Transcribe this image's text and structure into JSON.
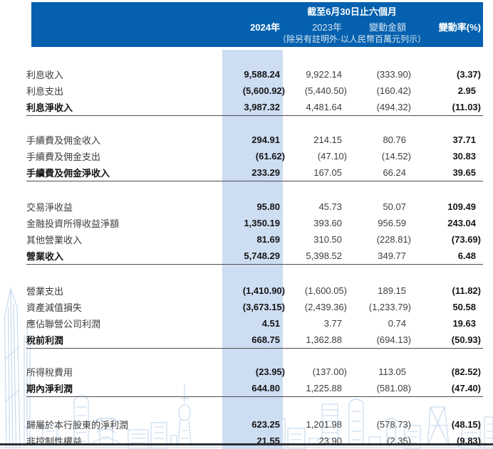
{
  "document": {
    "type": "financial-income-statement-table",
    "period_title": "截至6月30日止六個月",
    "unit_note": "（除另有註明外·以人民幣百萬元列示）",
    "columns": [
      "2024年",
      "2023年",
      "變動金額",
      "變動率(%)"
    ]
  },
  "colors": {
    "header_band_blue": "#0561af",
    "column_highlight_blue": "#cdddf2",
    "watermark_blue": "#bcd3ec",
    "rule_gray": "#4e4e4e",
    "bottom_line_dark": "#2c2e33"
  },
  "sections": [
    {
      "rule": true,
      "rows": [
        {
          "label": "利息收入",
          "total": false,
          "values": [
            "9,588.24",
            "9,922.14",
            "(333.90)",
            "(3.37)"
          ]
        },
        {
          "label": "利息支出",
          "total": false,
          "values": [
            "(5,600.92)",
            "(5,440.50)",
            "(160.42)",
            "2.95"
          ]
        },
        {
          "label": "利息淨收入",
          "total": true,
          "values": [
            "3,987.32",
            "4,481.64",
            "(494.32)",
            "(11.03)"
          ]
        }
      ]
    },
    {
      "rule": true,
      "rows": [
        {
          "label": "手續費及佣金收入",
          "total": false,
          "values": [
            "294.91",
            "214.15",
            "80.76",
            "37.71"
          ]
        },
        {
          "label": "手續費及佣金支出",
          "total": false,
          "values": [
            "(61.62)",
            "(47.10)",
            "(14.52)",
            "30.83"
          ]
        },
        {
          "label": "手續費及佣金淨收入",
          "total": true,
          "values": [
            "233.29",
            "167.05",
            "66.24",
            "39.65"
          ]
        }
      ]
    },
    {
      "rule": true,
      "rows": [
        {
          "label": "交易淨收益",
          "total": false,
          "values": [
            "95.80",
            "45.73",
            "50.07",
            "109.49"
          ]
        },
        {
          "label": "金融投資所得收益淨額",
          "total": false,
          "values": [
            "1,350.19",
            "393.60",
            "956.59",
            "243.04"
          ]
        },
        {
          "label": "其他營業收入",
          "total": false,
          "values": [
            "81.69",
            "310.50",
            "(228.81)",
            "(73.69)"
          ]
        },
        {
          "label": "營業收入",
          "total": true,
          "values": [
            "5,748.29",
            "5,398.52",
            "349.77",
            "6.48"
          ]
        }
      ]
    },
    {
      "rule": true,
      "rows": [
        {
          "label": "營業支出",
          "total": false,
          "values": [
            "(1,410.90)",
            "(1,600.05)",
            "189.15",
            "(11.82)"
          ]
        },
        {
          "label": "資產減值損失",
          "total": false,
          "values": [
            "(3,673.15)",
            "(2,439.36)",
            "(1,233.79)",
            "50.58"
          ]
        },
        {
          "label": "應佔聯營公司利潤",
          "total": false,
          "values": [
            "4.51",
            "3.77",
            "0.74",
            "19.63"
          ]
        },
        {
          "label": "稅前利潤",
          "total": true,
          "values": [
            "668.75",
            "1,362.88",
            "(694.13)",
            "(50.93)"
          ]
        }
      ]
    },
    {
      "rule": true,
      "rows": [
        {
          "label": "所得稅費用",
          "total": false,
          "values": [
            "(23.95)",
            "(137.00)",
            "113.05",
            "(82.52)"
          ]
        },
        {
          "label": "期內淨利潤",
          "total": true,
          "values": [
            "644.80",
            "1,225.88",
            "(581.08)",
            "(47.40)"
          ]
        }
      ]
    },
    {
      "rule": false,
      "rows": [
        {
          "label": "歸屬於本行股東的淨利潤",
          "total": false,
          "values": [
            "623.25",
            "1,201.98",
            "(578.73)",
            "(48.15)"
          ]
        },
        {
          "label": "非控制性權益",
          "total": false,
          "values": [
            "21.55",
            "23.90",
            "(2.35)",
            "(9.83)"
          ]
        }
      ]
    }
  ],
  "layout_gaps": [
    22,
    24,
    25,
    21,
    27
  ]
}
